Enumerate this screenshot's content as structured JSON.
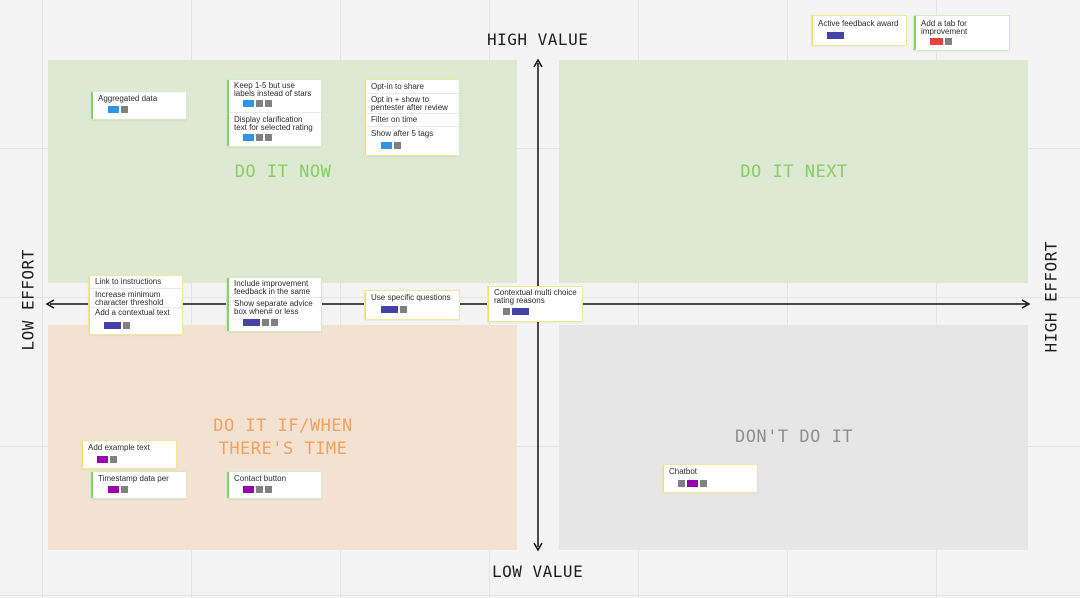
{
  "axes": {
    "top": "HIGH VALUE",
    "bottom": "LOW VALUE",
    "left": "LOW EFFORT",
    "right": "HIGH EFFORT"
  },
  "quadrants": {
    "now": "DO IT NOW",
    "next": "DO IT NEXT",
    "time_line1": "DO IT IF/WHEN",
    "time_line2": "THERE'S TIME",
    "dont": "DON'T DO IT"
  },
  "colors": {
    "quadrant_green": "#dde9d3",
    "quadrant_orange": "#f3e1d1",
    "quadrant_grey": "#e6e6e6",
    "tag_blue": "#2f95e6",
    "tag_grey": "#808080",
    "tag_indigo": "#4444a8",
    "tag_purple": "#9900b0",
    "tag_red": "#e8403a"
  },
  "notes": {
    "active_feedback": "Active feedback award",
    "add_tab": "Add a tab for improvement",
    "aggregated": "Aggregated data",
    "keep15": "Keep 1-5 but use labels instead of stars",
    "display_clar": "Display clarification text for selected rating",
    "optin_share": "Opt-in to share",
    "optin_show": "Opt in + show to pentester after review",
    "filter_time": "Filter on time",
    "show_after": "Show after 5 tags",
    "link_instr": "Link to instructions",
    "increase_min": "Increase minimum character threshold",
    "add_contextual": "Add a contextual text",
    "include_impr": "Include improvement feedback in the same",
    "show_sep": "Show separate advice box when# or less",
    "use_specific": "Use specific questions",
    "contextual_multi": "Contextual multi choice rating reasons",
    "add_example": "Add example text",
    "timestamp": "Timestamp data per",
    "contact_btn": "Contact button",
    "chatbot": "Chatbot"
  }
}
